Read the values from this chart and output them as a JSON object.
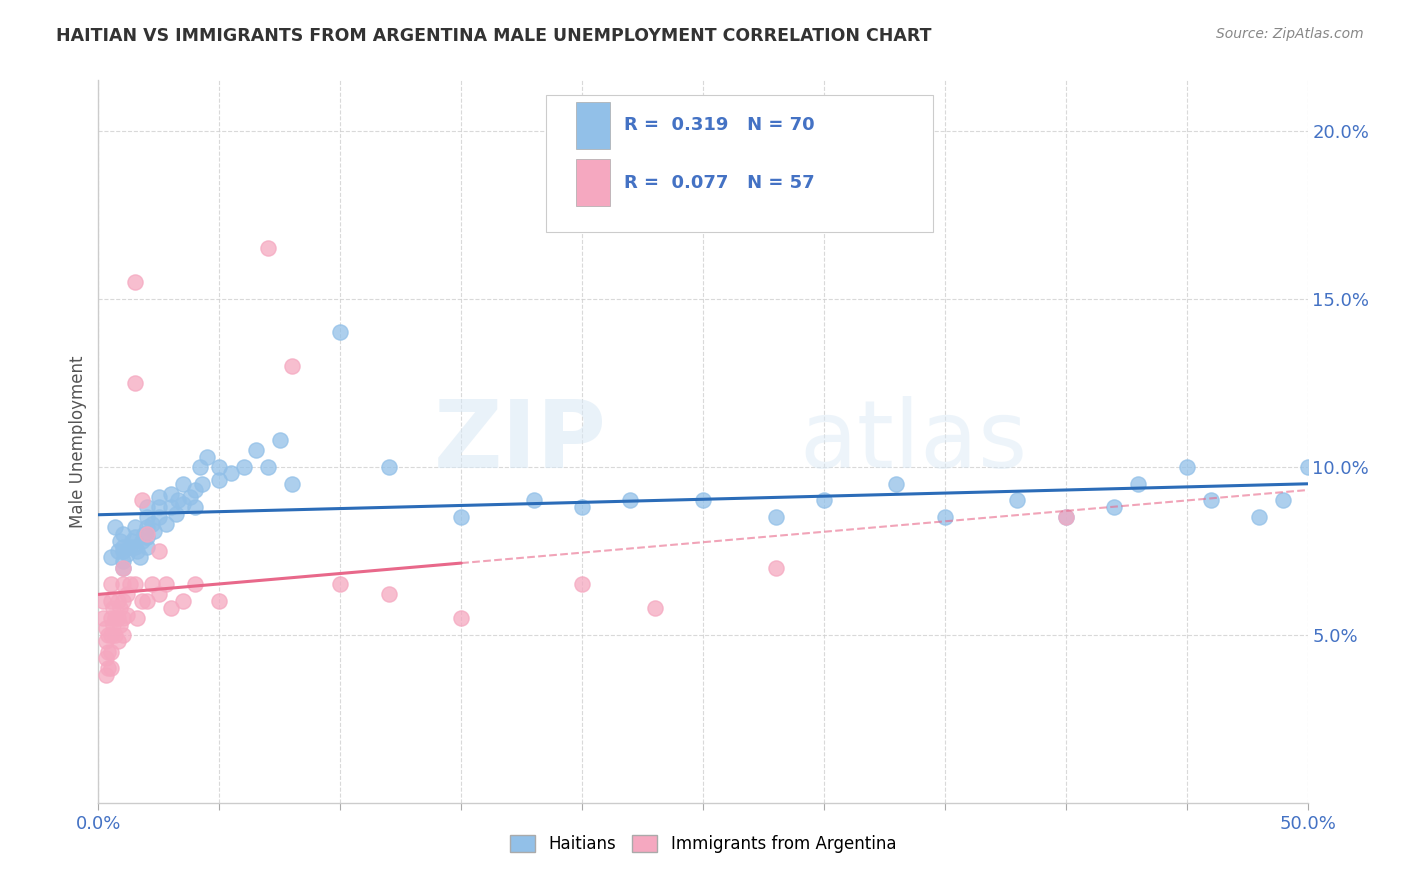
{
  "title": "HAITIAN VS IMMIGRANTS FROM ARGENTINA MALE UNEMPLOYMENT CORRELATION CHART",
  "source": "Source: ZipAtlas.com",
  "ylabel": "Male Unemployment",
  "xlim": [
    0,
    0.5
  ],
  "ylim": [
    0.0,
    0.215
  ],
  "series1_label": "Haitians",
  "series2_label": "Immigrants from Argentina",
  "series1_color": "#92c0e8",
  "series2_color": "#f5a8c0",
  "legend_R1_text": "R = ",
  "legend_R1_val": "0.319",
  "legend_N1_text": "N = ",
  "legend_N1_val": "70",
  "legend_R2_text": "R = ",
  "legend_R2_val": "0.077",
  "legend_N2_text": "N = ",
  "legend_N2_val": "57",
  "watermark": "ZIPatlas",
  "background_color": "#ffffff",
  "grid_color": "#cccccc",
  "title_color": "#333333",
  "legend_text_color": "#4472c4",
  "axis_label_color": "#555555",
  "tick_color": "#4472c4",
  "series1_x": [
    0.005,
    0.007,
    0.008,
    0.009,
    0.01,
    0.01,
    0.01,
    0.01,
    0.01,
    0.012,
    0.013,
    0.014,
    0.015,
    0.015,
    0.015,
    0.016,
    0.017,
    0.018,
    0.019,
    0.02,
    0.02,
    0.02,
    0.02,
    0.02,
    0.022,
    0.023,
    0.025,
    0.025,
    0.025,
    0.028,
    0.03,
    0.03,
    0.032,
    0.033,
    0.035,
    0.035,
    0.038,
    0.04,
    0.04,
    0.042,
    0.043,
    0.045,
    0.05,
    0.05,
    0.055,
    0.06,
    0.065,
    0.07,
    0.075,
    0.08,
    0.1,
    0.12,
    0.15,
    0.18,
    0.2,
    0.22,
    0.25,
    0.28,
    0.3,
    0.33,
    0.35,
    0.38,
    0.4,
    0.42,
    0.43,
    0.45,
    0.46,
    0.48,
    0.49,
    0.5
  ],
  "series1_y": [
    0.073,
    0.082,
    0.075,
    0.078,
    0.072,
    0.076,
    0.08,
    0.075,
    0.07,
    0.074,
    0.076,
    0.078,
    0.082,
    0.079,
    0.076,
    0.075,
    0.073,
    0.078,
    0.08,
    0.076,
    0.079,
    0.082,
    0.085,
    0.088,
    0.083,
    0.081,
    0.085,
    0.088,
    0.091,
    0.083,
    0.088,
    0.092,
    0.086,
    0.09,
    0.089,
    0.095,
    0.091,
    0.088,
    0.093,
    0.1,
    0.095,
    0.103,
    0.096,
    0.1,
    0.098,
    0.1,
    0.105,
    0.1,
    0.108,
    0.095,
    0.14,
    0.1,
    0.085,
    0.09,
    0.088,
    0.09,
    0.09,
    0.085,
    0.09,
    0.095,
    0.085,
    0.09,
    0.085,
    0.088,
    0.095,
    0.1,
    0.09,
    0.085,
    0.09,
    0.1
  ],
  "series2_x": [
    0.002,
    0.002,
    0.003,
    0.003,
    0.003,
    0.003,
    0.004,
    0.004,
    0.004,
    0.005,
    0.005,
    0.005,
    0.005,
    0.005,
    0.005,
    0.006,
    0.006,
    0.007,
    0.007,
    0.008,
    0.008,
    0.008,
    0.009,
    0.009,
    0.01,
    0.01,
    0.01,
    0.01,
    0.01,
    0.012,
    0.012,
    0.013,
    0.015,
    0.015,
    0.015,
    0.016,
    0.018,
    0.018,
    0.02,
    0.02,
    0.022,
    0.025,
    0.025,
    0.028,
    0.03,
    0.035,
    0.04,
    0.05,
    0.07,
    0.08,
    0.1,
    0.12,
    0.15,
    0.2,
    0.23,
    0.28,
    0.4
  ],
  "series2_y": [
    0.06,
    0.055,
    0.052,
    0.048,
    0.043,
    0.038,
    0.05,
    0.045,
    0.04,
    0.065,
    0.06,
    0.055,
    0.05,
    0.045,
    0.04,
    0.058,
    0.053,
    0.055,
    0.05,
    0.06,
    0.055,
    0.048,
    0.058,
    0.053,
    0.07,
    0.065,
    0.06,
    0.055,
    0.05,
    0.062,
    0.056,
    0.065,
    0.155,
    0.125,
    0.065,
    0.055,
    0.09,
    0.06,
    0.08,
    0.06,
    0.065,
    0.075,
    0.062,
    0.065,
    0.058,
    0.06,
    0.065,
    0.06,
    0.165,
    0.13,
    0.065,
    0.062,
    0.055,
    0.065,
    0.058,
    0.07,
    0.085
  ]
}
